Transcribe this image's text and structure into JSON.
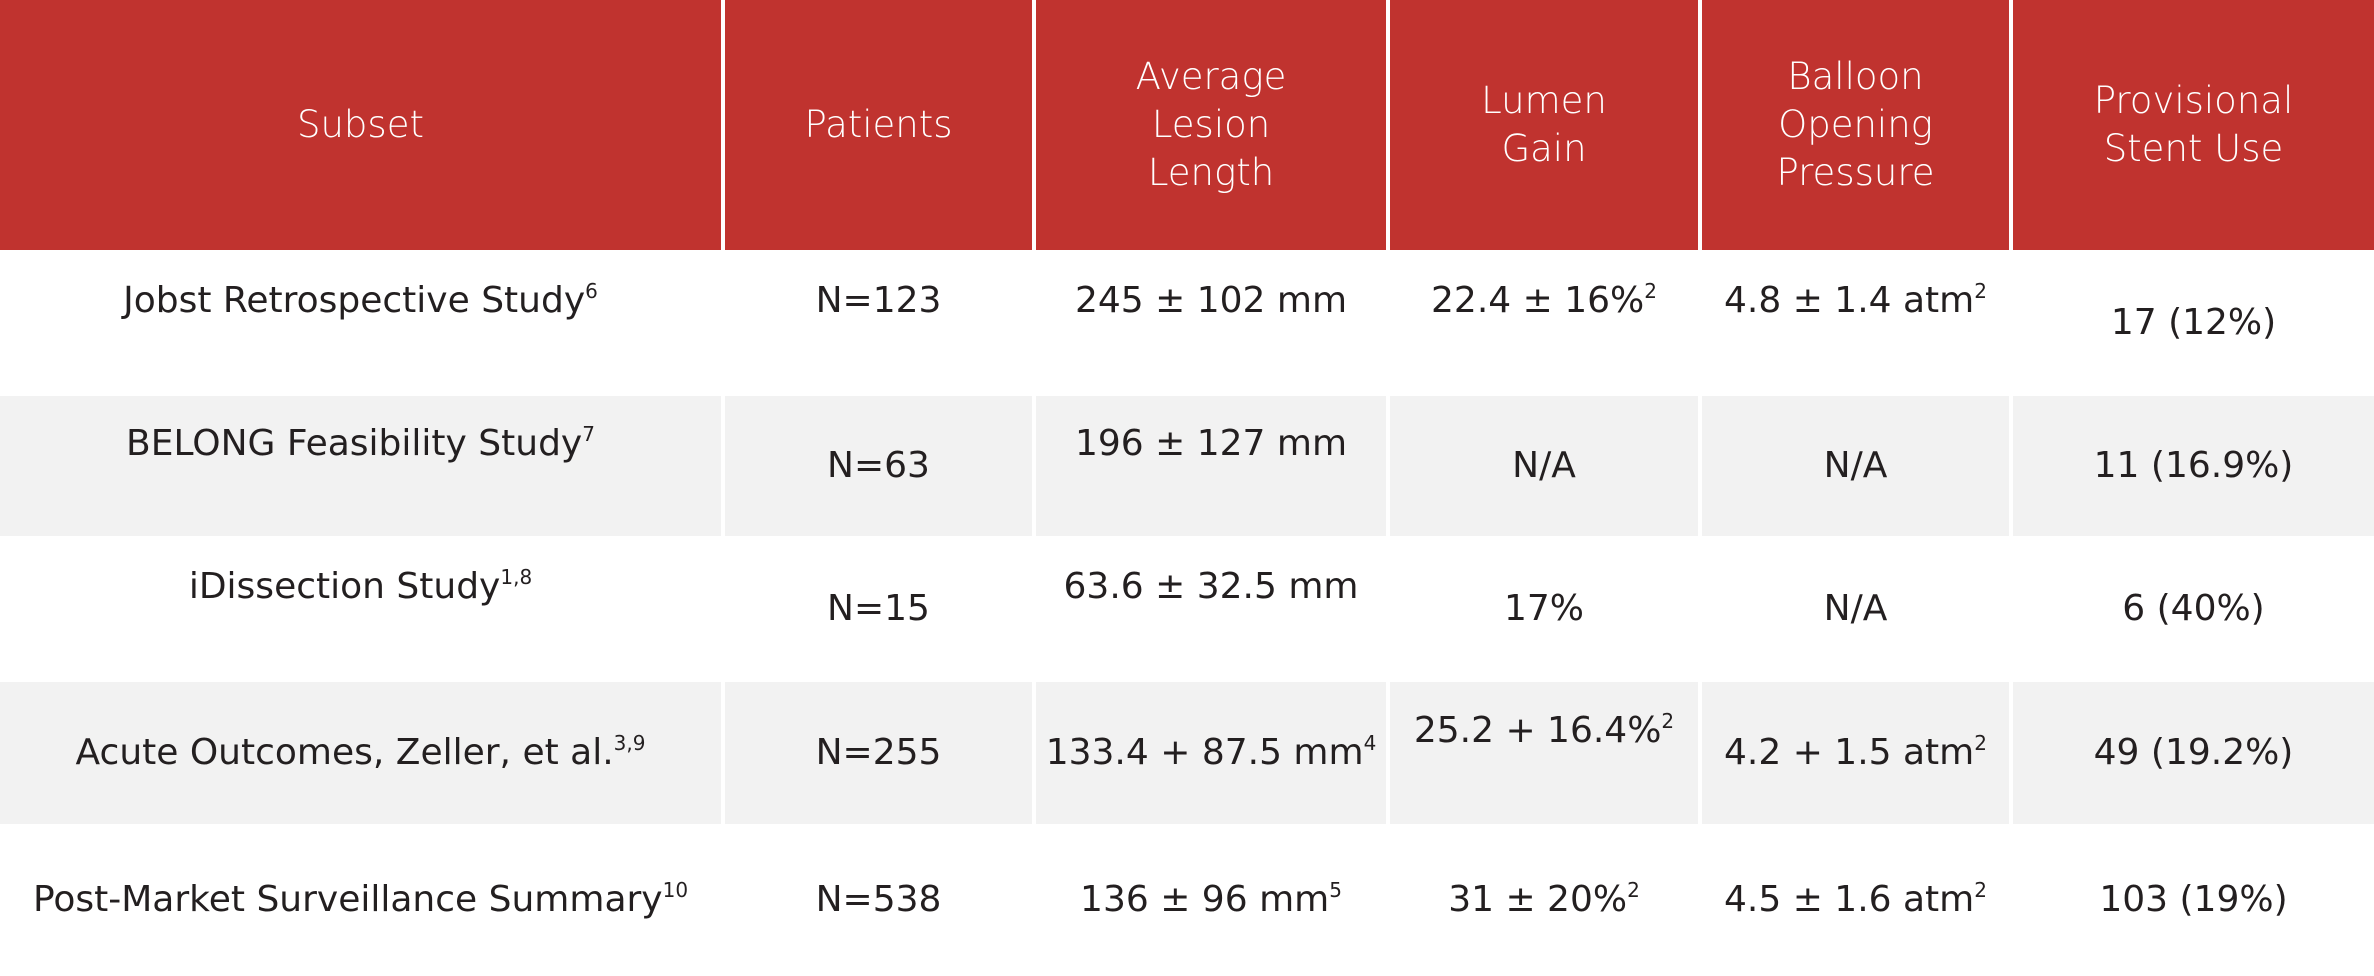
{
  "header": {
    "subset": "Subset",
    "patients": "Patients",
    "lesion_length": [
      "Average",
      "Lesion",
      "Length"
    ],
    "lumen_gain": [
      "Lumen",
      "Gain"
    ],
    "balloon_pressure": [
      "Balloon",
      "Opening",
      "Pressure"
    ],
    "stent_use": [
      "Provisional",
      "Stent Use"
    ]
  },
  "rows": [
    {
      "subset": {
        "text": "Jobst Retrospective Study",
        "sup": "6"
      },
      "patients": "N=123",
      "lesion_length": {
        "text": "245 ± 102 mm",
        "sup": ""
      },
      "lumen_gain": {
        "text": "22.4 ± 16%",
        "sup": "2"
      },
      "balloon_pressure": {
        "text": "4.8 ± 1.4 atm",
        "sup": "2"
      },
      "stent_use": "17 (12%)"
    },
    {
      "subset": {
        "text": "BELONG Feasibility Study",
        "sup": "7"
      },
      "patients": "N=63",
      "lesion_length": {
        "text": "196 ± 127 mm",
        "sup": ""
      },
      "lumen_gain": {
        "text": "N/A",
        "sup": ""
      },
      "balloon_pressure": {
        "text": "N/A",
        "sup": ""
      },
      "stent_use": "11 (16.9%)"
    },
    {
      "subset": {
        "text": "iDissection Study",
        "sup": "1,8"
      },
      "patients": "N=15",
      "lesion_length": {
        "text": "63.6 ± 32.5 mm",
        "sup": ""
      },
      "lumen_gain": {
        "text": "17%",
        "sup": ""
      },
      "balloon_pressure": {
        "text": "N/A",
        "sup": ""
      },
      "stent_use": "6 (40%)"
    },
    {
      "subset": {
        "text": "Acute Outcomes, Zeller, et al.",
        "sup": "3,9"
      },
      "patients": "N=255",
      "lesion_length": {
        "text": "133.4 + 87.5 mm",
        "sup": "4"
      },
      "lumen_gain": {
        "text": "25.2 + 16.4%",
        "sup": "2"
      },
      "balloon_pressure": {
        "text": "4.2 + 1.5 atm",
        "sup": "2"
      },
      "stent_use": "49 (19.2%)"
    },
    {
      "subset": {
        "text": "Post-Market Surveillance Summary",
        "sup": "10"
      },
      "patients": "N=538",
      "lesion_length": {
        "text": "136 ± 96 mm",
        "sup": "5"
      },
      "lumen_gain": {
        "text": "31 ± 20%",
        "sup": "2"
      },
      "balloon_pressure": {
        "text": "4.5 ± 1.6 atm",
        "sup": "2"
      },
      "stent_use": "103 (19%)"
    }
  ],
  "colors": {
    "header_bg": "#c0332f",
    "header_text": "#ffffff",
    "stripe": "#f2f2f2"
  }
}
